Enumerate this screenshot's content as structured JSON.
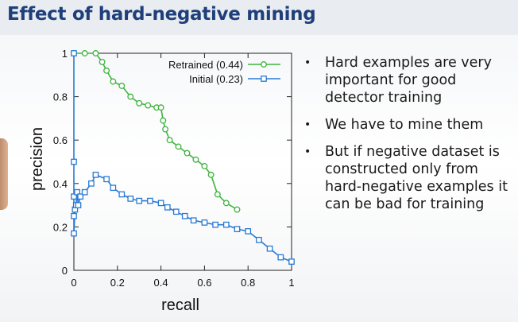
{
  "slide": {
    "title": "Effect of hard-negative mining"
  },
  "bullets": [
    "Hard examples are very important for good detector training",
    "We have to mine them",
    "But if negative dataset is constructed only from hard-negative examples it can be bad for training"
  ],
  "chart_data": {
    "type": "line",
    "title": "",
    "xlabel": "recall",
    "ylabel": "precision",
    "xlim": [
      0,
      1
    ],
    "ylim": [
      0,
      1
    ],
    "xticks": [
      "0",
      "0.2",
      "0.4",
      "0.6",
      "0.8",
      "1"
    ],
    "yticks": [
      "0",
      "0.2",
      "0.4",
      "0.6",
      "0.8",
      "1"
    ],
    "grid": false,
    "legend": "top-right",
    "series": [
      {
        "name": "Retrained (0.44)",
        "color": "#3cb43c",
        "marker": "circle",
        "x": [
          0.0,
          0.05,
          0.1,
          0.13,
          0.15,
          0.18,
          0.22,
          0.26,
          0.3,
          0.34,
          0.38,
          0.4,
          0.41,
          0.42,
          0.44,
          0.48,
          0.52,
          0.56,
          0.6,
          0.63,
          0.66,
          0.7,
          0.75
        ],
        "y": [
          1.0,
          1.0,
          1.0,
          0.96,
          0.92,
          0.87,
          0.85,
          0.8,
          0.77,
          0.76,
          0.75,
          0.75,
          0.69,
          0.65,
          0.6,
          0.57,
          0.54,
          0.51,
          0.48,
          0.44,
          0.35,
          0.31,
          0.28
        ]
      },
      {
        "name": "Initial (0.23)",
        "color": "#2a7ad2",
        "marker": "square",
        "x": [
          0.0,
          0.0,
          0.0,
          0.0,
          0.0,
          0.005,
          0.01,
          0.015,
          0.02,
          0.03,
          0.05,
          0.08,
          0.1,
          0.15,
          0.18,
          0.22,
          0.26,
          0.3,
          0.35,
          0.4,
          0.43,
          0.47,
          0.51,
          0.55,
          0.6,
          0.65,
          0.7,
          0.75,
          0.8,
          0.85,
          0.9,
          0.95,
          1.0
        ],
        "y": [
          1.0,
          0.5,
          0.34,
          0.25,
          0.17,
          0.28,
          0.3,
          0.36,
          0.3,
          0.34,
          0.36,
          0.4,
          0.44,
          0.42,
          0.38,
          0.35,
          0.33,
          0.32,
          0.32,
          0.31,
          0.29,
          0.27,
          0.25,
          0.23,
          0.22,
          0.21,
          0.21,
          0.19,
          0.18,
          0.14,
          0.1,
          0.06,
          0.04
        ]
      }
    ]
  }
}
